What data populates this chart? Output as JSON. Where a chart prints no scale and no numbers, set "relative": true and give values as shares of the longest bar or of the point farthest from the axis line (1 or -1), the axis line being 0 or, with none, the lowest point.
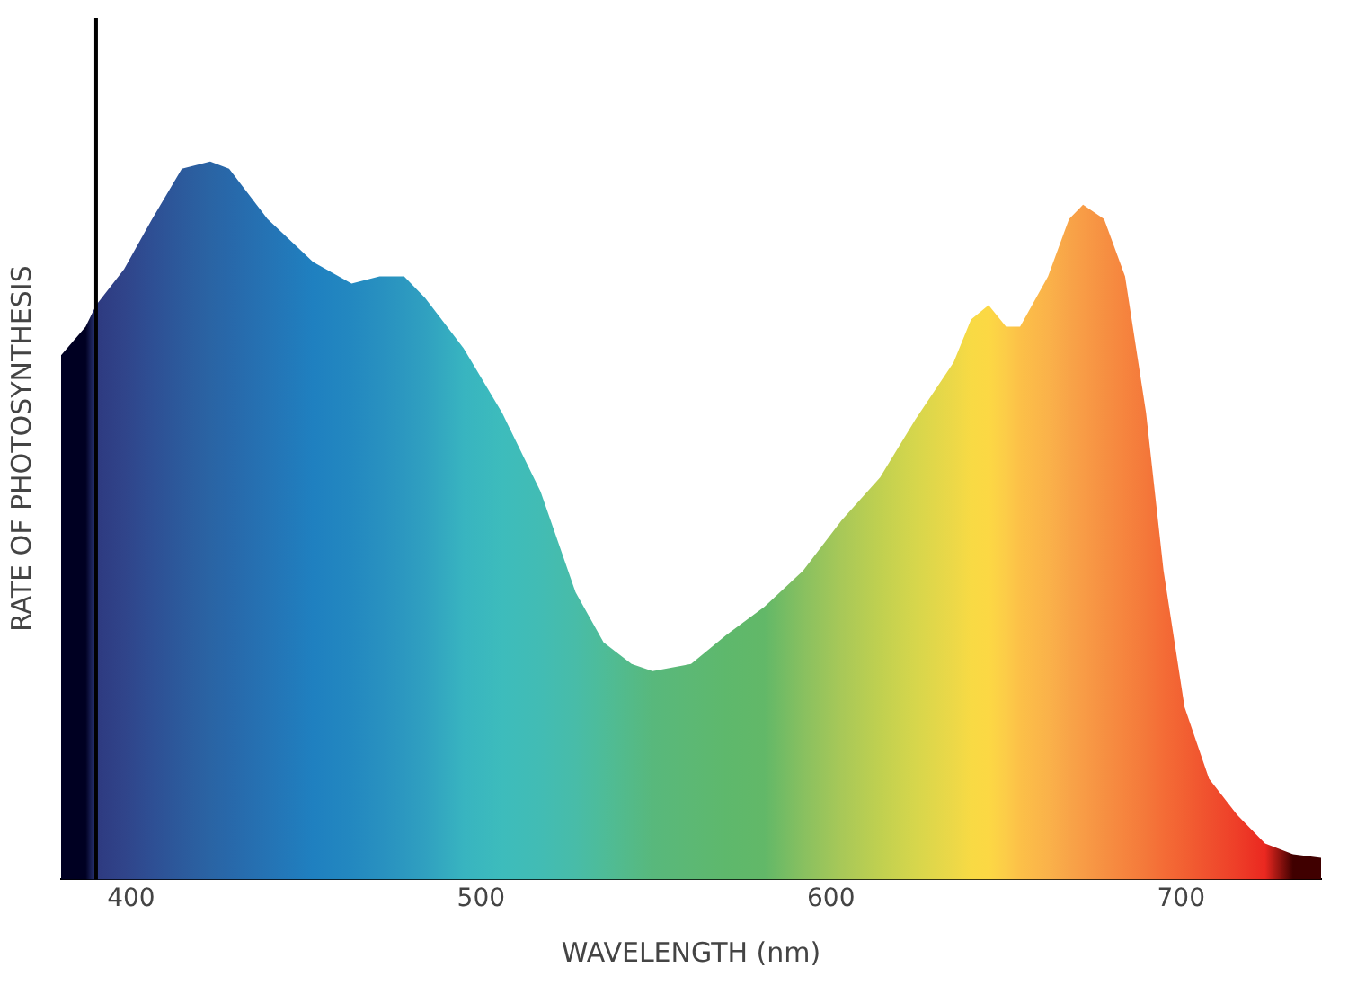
{
  "chart_data": {
    "type": "area",
    "relative": true,
    "xlabel": "WAVELENGTH (nm)",
    "ylabel": "RATE OF PHOTOSYNTHESIS",
    "xlim": [
      380,
      740
    ],
    "xticks": [
      400,
      500,
      600,
      700
    ],
    "grid": false,
    "legend": false,
    "ref_lines": [
      {
        "axis": "x",
        "value": 390,
        "color": "#000000"
      }
    ],
    "series": [
      {
        "x": [
          380,
          387,
          390,
          398,
          406,
          414.5,
          422.6,
          428,
          439,
          452,
          463,
          471,
          478,
          484,
          495,
          506,
          517,
          527,
          535,
          543,
          549,
          560,
          570,
          581,
          592,
          603,
          614,
          624,
          635,
          640,
          645,
          650,
          654,
          662,
          668,
          672,
          678,
          684,
          690,
          695,
          701,
          708,
          716,
          724,
          732,
          740
        ],
        "values": [
          0.73,
          0.77,
          0.8,
          0.85,
          0.92,
          0.99,
          1.0,
          0.99,
          0.92,
          0.86,
          0.83,
          0.84,
          0.84,
          0.81,
          0.74,
          0.65,
          0.54,
          0.4,
          0.33,
          0.3,
          0.29,
          0.3,
          0.34,
          0.38,
          0.43,
          0.5,
          0.56,
          0.64,
          0.72,
          0.78,
          0.8,
          0.77,
          0.77,
          0.84,
          0.92,
          0.94,
          0.92,
          0.84,
          0.65,
          0.43,
          0.24,
          0.14,
          0.09,
          0.05,
          0.035,
          0.03
        ],
        "colors": [
          "#000022",
          "#000022",
          "#2e3a80",
          "#30448a",
          "#2e4f94",
          "#2c5a9c",
          "#2a64a4",
          "#2868aa",
          "#2573b4",
          "#1f80c0",
          "#2388c0",
          "#2890c0",
          "#2c98c0",
          "#30a0c0",
          "#38b4c0",
          "#3dbcbc",
          "#42bcb4",
          "#48bca8",
          "#4ebc98",
          "#54ba88",
          "#58b87c",
          "#5cb874",
          "#5eb86c",
          "#62b868",
          "#88c060",
          "#a8c858",
          "#c0d050",
          "#d6d64c",
          "#ecd848",
          "#f8da44",
          "#fcd844",
          "#fccc48",
          "#fcc048",
          "#fab24a",
          "#f8a448",
          "#f89c46",
          "#f69042",
          "#f6843e",
          "#f4783a",
          "#f46c36",
          "#f26032",
          "#f0502e",
          "#ee3e28",
          "#ea2820",
          "#400000",
          "#400000"
        ]
      }
    ]
  }
}
